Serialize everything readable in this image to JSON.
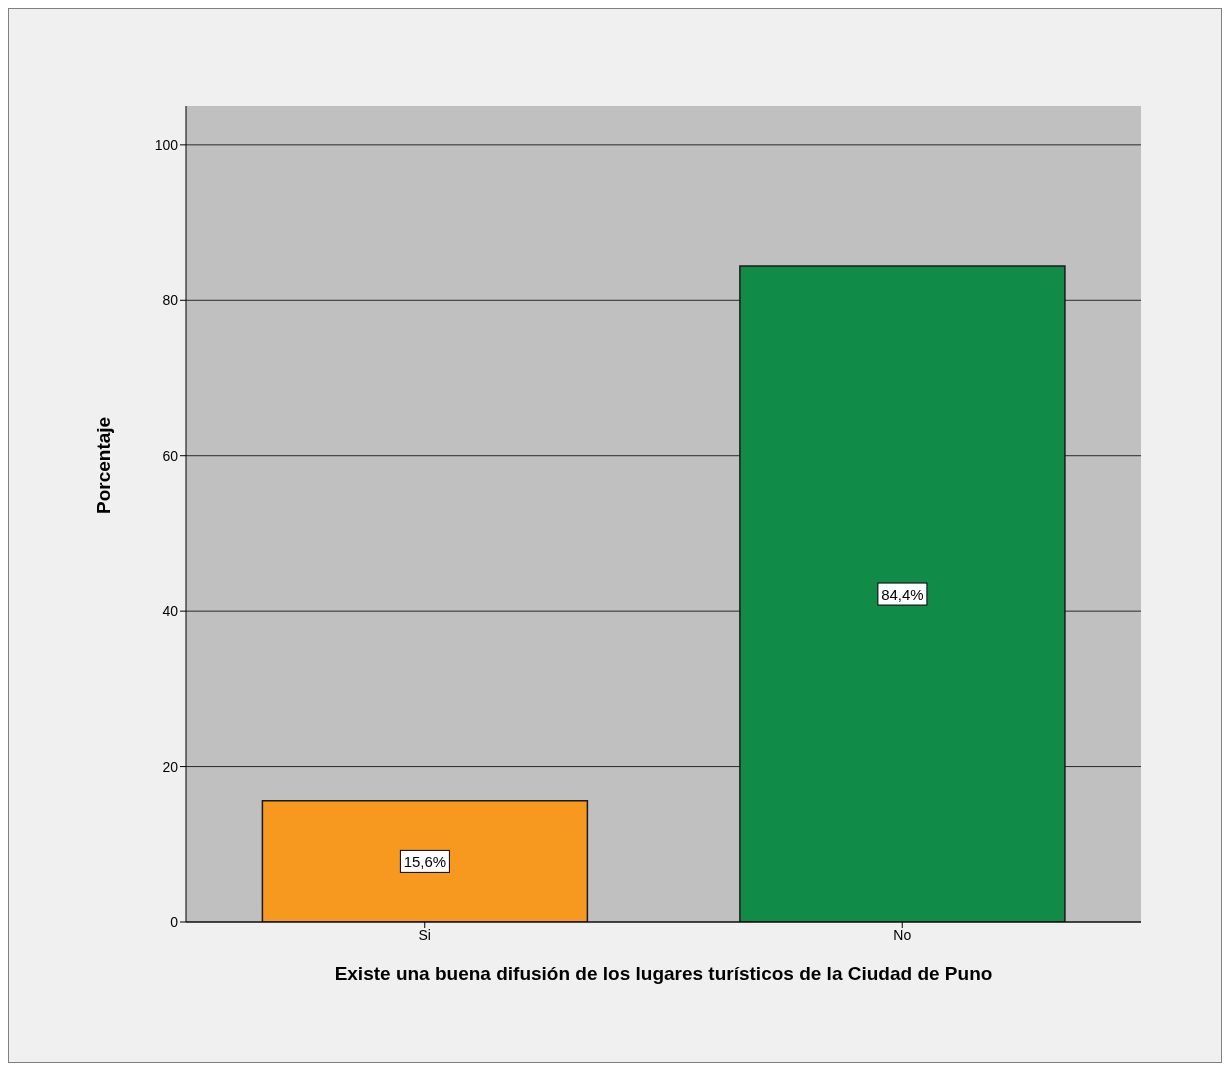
{
  "chart_data": {
    "type": "bar",
    "xlabel": "Existe una buena difusión de los lugares turísticos de la Ciudad de Puno",
    "ylabel": "Porcentaje",
    "categories": [
      "Si",
      "No"
    ],
    "values": [
      15.6,
      84.4
    ],
    "colors": [
      "#f7991f",
      "#108c48"
    ],
    "value_labels": [
      "15,6%",
      "84,4%"
    ],
    "ylim": [
      0,
      105
    ],
    "yticks": [
      0,
      20,
      40,
      60,
      80,
      100
    ],
    "grid": "y"
  }
}
